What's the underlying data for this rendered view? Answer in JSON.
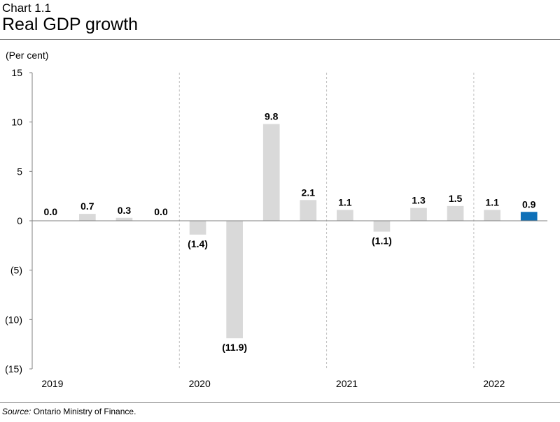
{
  "header": {
    "chart_label": "Chart 1.1",
    "title": "Real GDP growth"
  },
  "footer": {
    "source_label": "Source:",
    "source_text": " Ontario Ministry of Finance."
  },
  "colors": {
    "bar": "#d9d9d9",
    "highlight": "#0e70b8",
    "axis": "#808080",
    "gridline": "#bfbfbf"
  },
  "chart_data": {
    "type": "bar",
    "title": "Real GDP growth",
    "ylabel": "(Per cent)",
    "ylim": [
      -15,
      15
    ],
    "yticks": [
      15,
      10,
      5,
      0,
      -5,
      -10,
      -15
    ],
    "ytick_labels": [
      "15",
      "10",
      "5",
      "0",
      "(5)",
      "(10)",
      "(15)"
    ],
    "year_labels": [
      "2019",
      "2020",
      "2021",
      "2022"
    ],
    "quarters_per_year": 4,
    "values": [
      0.0,
      0.7,
      0.3,
      0.0,
      -1.4,
      -11.9,
      9.8,
      2.1,
      1.1,
      -1.1,
      1.3,
      1.5,
      1.1,
      0.9
    ],
    "value_labels": [
      "0.0",
      "0.7",
      "0.3",
      "0.0",
      "(1.4)",
      "(11.9)",
      "9.8",
      "2.1",
      "1.1",
      "(1.1)",
      "1.3",
      "1.5",
      "1.1",
      "0.9"
    ],
    "highlight_index": 13,
    "grid": false,
    "legend": "none"
  }
}
